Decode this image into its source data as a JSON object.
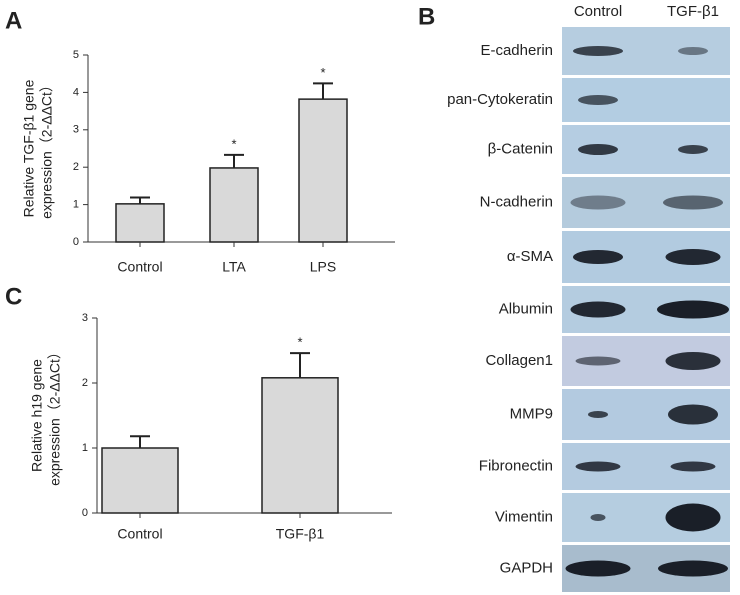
{
  "chart_data": [
    {
      "type": "bar",
      "panel": "A",
      "ylabel": [
        "Relative TGF-β1 gene",
        "expression（2-ΔΔCt）"
      ],
      "categories": [
        "Control",
        "LTA",
        "LPS"
      ],
      "values": [
        1.02,
        1.98,
        3.82
      ],
      "errors": [
        0.17,
        0.35,
        0.42
      ],
      "annotations": [
        null,
        "*",
        "*"
      ],
      "color": "#d9d9d9",
      "ylim": [
        0,
        5
      ],
      "yticks": [
        0,
        1,
        2,
        3,
        4,
        5
      ]
    },
    {
      "type": "bar",
      "panel": "C",
      "ylabel": [
        "Relative h19  gene",
        "expression（2-ΔΔCt）"
      ],
      "categories": [
        "Control",
        "TGF-β1"
      ],
      "values": [
        1.0,
        2.08
      ],
      "errors": [
        0.18,
        0.38
      ],
      "annotations": [
        null,
        "*"
      ],
      "color": "#d9d9d9",
      "ylim": [
        0,
        3
      ],
      "yticks": [
        0,
        1,
        2,
        3
      ]
    }
  ],
  "blot": {
    "panel": "B",
    "columns": [
      "Control",
      "TGF-β1"
    ],
    "rows": [
      "E-cadherin",
      "pan-Cytokeratin",
      "β-Catenin",
      "N-cadherin",
      "α-SMA",
      "Albumin",
      "Collagen1",
      "MMP9",
      "Fibronectin",
      "Vimentin",
      "GAPDH"
    ]
  }
}
